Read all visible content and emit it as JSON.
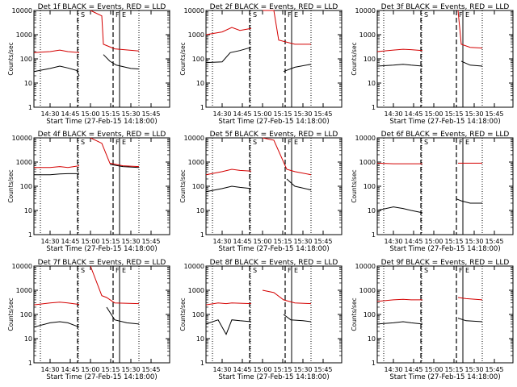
{
  "figure": {
    "x_tick_labels": [
      "14:30",
      "14:45",
      "15:00",
      "15:15",
      "15:30",
      "15:45"
    ],
    "y_tick_labels": [
      "1",
      "10",
      "100",
      "1000",
      "10000"
    ],
    "xlabel": "Start Time (27-Feb-15 14:18:00)",
    "ylabel": "Counts/sec",
    "colors": {
      "events": "#000000",
      "lld": "#d40000",
      "axes": "#000000",
      "background": "#ffffff"
    },
    "vertical_marker_letters": [
      "S",
      "F",
      "E"
    ]
  },
  "chart_data": [
    {
      "type": "line",
      "title": "Det 1f BLACK = Events, RED = LLD",
      "ylim": [
        1,
        10000
      ],
      "y_scale": "log",
      "xlim_minutes": [
        14.3,
        15.98
      ],
      "series": [
        {
          "name": "Events",
          "color": "#000000",
          "values": [
            [
              14.3,
              30
            ],
            [
              14.5,
              40
            ],
            [
              14.62,
              50
            ],
            [
              14.72,
              42
            ],
            [
              14.83,
              33
            ],
            [
              14.86,
              20
            ]
          ],
          "second": [
            [
              15.16,
              150
            ],
            [
              15.24,
              80
            ],
            [
              15.32,
              55
            ],
            [
              15.5,
              40
            ],
            [
              15.6,
              38
            ]
          ]
        },
        {
          "name": "LLD",
          "color": "#d40000",
          "values": [
            [
              14.3,
              180
            ],
            [
              14.5,
              200
            ],
            [
              14.62,
              230
            ],
            [
              14.72,
              200
            ],
            [
              14.86,
              180
            ]
          ],
          "second": [
            [
              15.0,
              10000
            ],
            [
              15.14,
              6000
            ],
            [
              15.16,
              400
            ],
            [
              15.3,
              260
            ],
            [
              15.6,
              210
            ]
          ]
        }
      ]
    },
    {
      "type": "line",
      "title": "Det 2f BLACK = Events, RED = LLD",
      "ylim": [
        1,
        10000
      ],
      "y_scale": "log",
      "xlim_minutes": [
        14.3,
        15.98
      ],
      "series": [
        {
          "name": "Events",
          "color": "#000000",
          "values": [
            [
              14.3,
              70
            ],
            [
              14.5,
              75
            ],
            [
              14.6,
              180
            ],
            [
              14.72,
              220
            ],
            [
              14.86,
              300
            ]
          ],
          "second": [
            [
              15.26,
              30
            ],
            [
              15.4,
              45
            ],
            [
              15.6,
              60
            ]
          ]
        },
        {
          "name": "LLD",
          "color": "#d40000",
          "values": [
            [
              14.3,
              1000
            ],
            [
              14.5,
              1300
            ],
            [
              14.62,
              2000
            ],
            [
              14.72,
              1500
            ],
            [
              14.86,
              1800
            ]
          ],
          "second": [
            [
              15.0,
              10000
            ],
            [
              15.14,
              10000
            ],
            [
              15.2,
              600
            ],
            [
              15.4,
              400
            ],
            [
              15.6,
              400
            ]
          ]
        }
      ]
    },
    {
      "type": "line",
      "title": "Det 3f BLACK = Events, RED = LLD",
      "ylim": [
        1,
        10000
      ],
      "y_scale": "log",
      "xlim_minutes": [
        14.3,
        15.98
      ],
      "series": [
        {
          "name": "Events",
          "color": "#000000",
          "values": [
            [
              14.3,
              50
            ],
            [
              14.5,
              55
            ],
            [
              14.62,
              60
            ],
            [
              14.72,
              55
            ],
            [
              14.86,
              50
            ]
          ],
          "second": [
            [
              15.34,
              80
            ],
            [
              15.45,
              55
            ],
            [
              15.6,
              50
            ]
          ]
        },
        {
          "name": "LLD",
          "color": "#d40000",
          "values": [
            [
              14.3,
              200
            ],
            [
              14.5,
              230
            ],
            [
              14.62,
              250
            ],
            [
              14.72,
              240
            ],
            [
              14.86,
              220
            ]
          ],
          "second": [
            [
              15.3,
              10000
            ],
            [
              15.34,
              400
            ],
            [
              15.45,
              300
            ],
            [
              15.6,
              280
            ]
          ]
        }
      ]
    },
    {
      "type": "line",
      "title": "Det 4f BLACK = Events, RED = LLD",
      "ylim": [
        1,
        10000
      ],
      "y_scale": "log",
      "xlim_minutes": [
        14.3,
        15.98
      ],
      "series": [
        {
          "name": "Events",
          "color": "#000000",
          "values": [
            [
              14.3,
              300
            ],
            [
              14.5,
              300
            ],
            [
              14.62,
              320
            ],
            [
              14.72,
              330
            ],
            [
              14.86,
              330
            ]
          ],
          "second": [
            [
              15.24,
              800
            ],
            [
              15.4,
              650
            ],
            [
              15.6,
              600
            ]
          ]
        },
        {
          "name": "LLD",
          "color": "#d40000",
          "values": [
            [
              14.3,
              600
            ],
            [
              14.5,
              600
            ],
            [
              14.62,
              650
            ],
            [
              14.72,
              600
            ],
            [
              14.86,
              700
            ]
          ],
          "second": [
            [
              15.0,
              10000
            ],
            [
              15.14,
              6000
            ],
            [
              15.24,
              900
            ],
            [
              15.4,
              700
            ],
            [
              15.6,
              650
            ]
          ]
        }
      ]
    },
    {
      "type": "line",
      "title": "Det 5f BLACK = Events, RED = LLD",
      "ylim": [
        1,
        10000
      ],
      "y_scale": "log",
      "xlim_minutes": [
        14.3,
        15.98
      ],
      "series": [
        {
          "name": "Events",
          "color": "#000000",
          "values": [
            [
              14.3,
              60
            ],
            [
              14.5,
              80
            ],
            [
              14.62,
              100
            ],
            [
              14.72,
              90
            ],
            [
              14.86,
              80
            ]
          ],
          "second": [
            [
              15.3,
              200
            ],
            [
              15.4,
              100
            ],
            [
              15.6,
              70
            ]
          ]
        },
        {
          "name": "LLD",
          "color": "#d40000",
          "values": [
            [
              14.3,
              300
            ],
            [
              14.5,
              400
            ],
            [
              14.62,
              500
            ],
            [
              14.72,
              450
            ],
            [
              14.86,
              420
            ]
          ],
          "second": [
            [
              15.0,
              10000
            ],
            [
              15.14,
              8000
            ],
            [
              15.3,
              500
            ],
            [
              15.4,
              400
            ],
            [
              15.6,
              300
            ]
          ]
        }
      ]
    },
    {
      "type": "line",
      "title": "Det 6f BLACK = Events, RED = LLD",
      "ylim": [
        1,
        10000
      ],
      "y_scale": "log",
      "xlim_minutes": [
        14.3,
        15.98
      ],
      "series": [
        {
          "name": "Events",
          "color": "#000000",
          "values": [
            [
              14.3,
              10
            ],
            [
              14.5,
              14
            ],
            [
              14.62,
              12
            ],
            [
              14.72,
              10
            ],
            [
              14.86,
              8
            ]
          ],
          "second": [
            [
              15.28,
              30
            ],
            [
              15.34,
              25
            ],
            [
              15.45,
              20
            ],
            [
              15.6,
              20
            ]
          ]
        },
        {
          "name": "LLD",
          "color": "#d40000",
          "values": [
            [
              14.3,
              900
            ],
            [
              14.5,
              850
            ],
            [
              14.62,
              850
            ],
            [
              14.72,
              850
            ],
            [
              14.86,
              850
            ]
          ],
          "second": [
            [
              15.3,
              900
            ],
            [
              15.45,
              900
            ],
            [
              15.6,
              900
            ]
          ]
        }
      ]
    },
    {
      "type": "line",
      "title": "Det 7f BLACK = Events, RED = LLD",
      "ylim": [
        1,
        10000
      ],
      "y_scale": "log",
      "xlim_minutes": [
        14.3,
        15.98
      ],
      "series": [
        {
          "name": "Events",
          "color": "#000000",
          "values": [
            [
              14.3,
              30
            ],
            [
              14.5,
              45
            ],
            [
              14.62,
              50
            ],
            [
              14.72,
              45
            ],
            [
              14.86,
              30
            ]
          ],
          "second": [
            [
              15.2,
              200
            ],
            [
              15.3,
              60
            ],
            [
              15.45,
              45
            ],
            [
              15.6,
              40
            ]
          ]
        },
        {
          "name": "LLD",
          "color": "#d40000",
          "values": [
            [
              14.3,
              250
            ],
            [
              14.5,
              300
            ],
            [
              14.62,
              320
            ],
            [
              14.72,
              300
            ],
            [
              14.86,
              260
            ]
          ],
          "second": [
            [
              15.0,
              10000
            ],
            [
              15.14,
              600
            ],
            [
              15.2,
              500
            ],
            [
              15.3,
              300
            ],
            [
              15.6,
              280
            ]
          ]
        }
      ]
    },
    {
      "type": "line",
      "title": "Det 8f BLACK = Events, RED = LLD",
      "ylim": [
        1,
        10000
      ],
      "y_scale": "log",
      "xlim_minutes": [
        14.3,
        15.98
      ],
      "series": [
        {
          "name": "Events",
          "color": "#000000",
          "values": [
            [
              14.3,
              40
            ],
            [
              14.45,
              60
            ],
            [
              14.55,
              15
            ],
            [
              14.62,
              60
            ],
            [
              14.72,
              55
            ],
            [
              14.86,
              50
            ]
          ],
          "second": [
            [
              15.26,
              100
            ],
            [
              15.35,
              60
            ],
            [
              15.5,
              55
            ],
            [
              15.6,
              50
            ]
          ]
        },
        {
          "name": "LLD",
          "color": "#d40000",
          "values": [
            [
              14.3,
              250
            ],
            [
              14.45,
              300
            ],
            [
              14.55,
              280
            ],
            [
              14.62,
              300
            ],
            [
              14.72,
              290
            ],
            [
              14.86,
              280
            ]
          ],
          "second": [
            [
              15.0,
              1000
            ],
            [
              15.14,
              800
            ],
            [
              15.26,
              400
            ],
            [
              15.4,
              300
            ],
            [
              15.6,
              280
            ]
          ]
        }
      ]
    },
    {
      "type": "line",
      "title": "Det 9f BLACK = Events, RED = LLD",
      "ylim": [
        1,
        10000
      ],
      "y_scale": "log",
      "xlim_minutes": [
        14.3,
        15.98
      ],
      "series": [
        {
          "name": "Events",
          "color": "#000000",
          "values": [
            [
              14.3,
              40
            ],
            [
              14.5,
              45
            ],
            [
              14.62,
              50
            ],
            [
              14.72,
              45
            ],
            [
              14.86,
              40
            ]
          ],
          "second": [
            [
              15.3,
              70
            ],
            [
              15.4,
              55
            ],
            [
              15.6,
              50
            ]
          ]
        },
        {
          "name": "LLD",
          "color": "#d40000",
          "values": [
            [
              14.3,
              350
            ],
            [
              14.5,
              400
            ],
            [
              14.62,
              420
            ],
            [
              14.72,
              400
            ],
            [
              14.86,
              400
            ]
          ],
          "second": [
            [
              15.3,
              500
            ],
            [
              15.4,
              450
            ],
            [
              15.6,
              400
            ]
          ]
        }
      ]
    }
  ]
}
